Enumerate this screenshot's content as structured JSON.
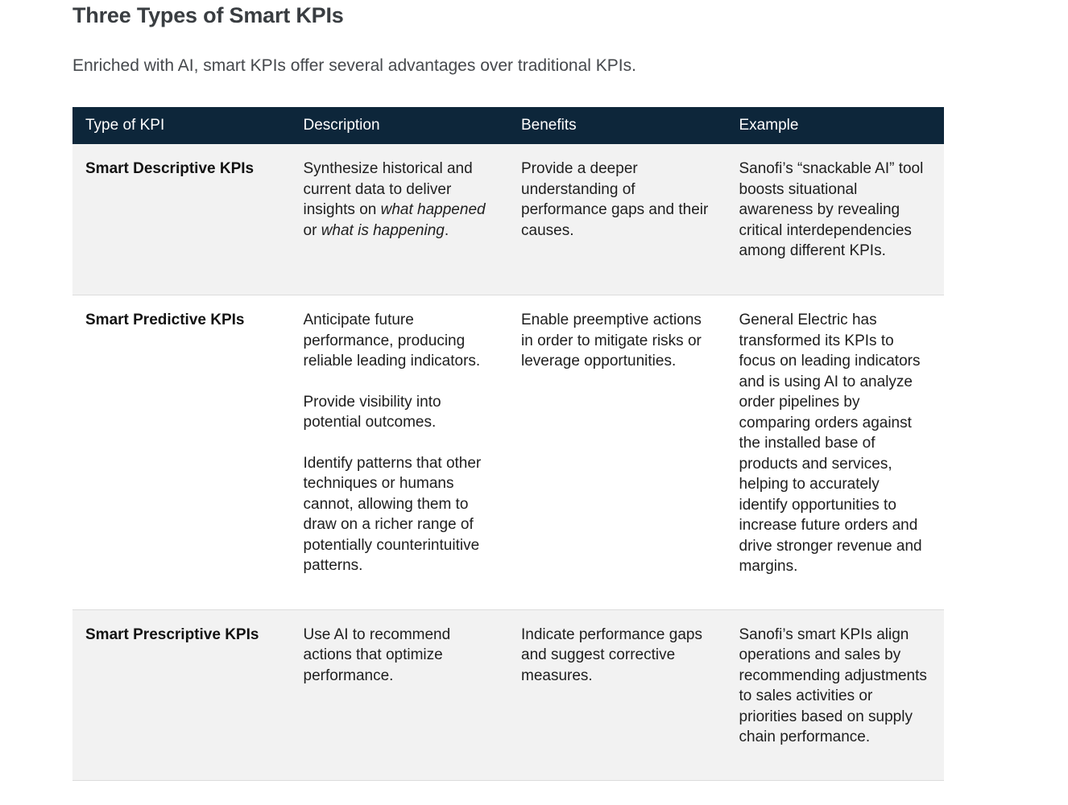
{
  "page": {
    "title": "Three Types of Smart KPIs",
    "subtitle": "Enriched with AI, smart KPIs offer several advantages over traditional KPIs."
  },
  "colors": {
    "header_bg": "#0d263a",
    "header_text": "#ffffff",
    "row_shade_bg": "#f2f2f2",
    "row_plain_bg": "#ffffff",
    "body_text": "#1e1e1e",
    "row_border": "#dcdcdc"
  },
  "table": {
    "columns": [
      "Type of KPI",
      "Description",
      "Benefits",
      "Example"
    ],
    "rows": [
      {
        "type": "Smart Descriptive KPIs",
        "description": [
          [
            {
              "text": "Synthesize historical and current data to deliver insights on ",
              "italic": false
            },
            {
              "text": "what happened",
              "italic": true
            },
            {
              "text": " or ",
              "italic": false
            },
            {
              "text": "what is happening",
              "italic": true
            },
            {
              "text": ".",
              "italic": false
            }
          ]
        ],
        "benefits": [
          "Provide a deeper understanding of performance gaps and their causes."
        ],
        "example": [
          "Sanofi’s “snackable AI” tool boosts situational awareness by revealing critical interdependencies among different KPIs."
        ]
      },
      {
        "type": "Smart Predictive KPIs",
        "description": [
          "Anticipate future performance, producing reliable leading indicators.",
          "Provide visibility into potential outcomes.",
          "Identify patterns that other techniques or humans cannot, allowing them to draw on a richer range of potentially counterintuitive patterns."
        ],
        "benefits": [
          "Enable preemptive actions in order to mitigate risks or leverage opportunities."
        ],
        "example": [
          "General Electric has transformed its KPIs to focus on leading indicators and is using AI to analyze order pipelines by comparing orders against the installed base of products and services, helping to accurately identify opportunities to increase future orders and drive stronger revenue and margins."
        ]
      },
      {
        "type": "Smart Prescriptive KPIs",
        "description": [
          "Use AI to recommend actions that optimize performance."
        ],
        "benefits": [
          "Indicate performance gaps and suggest corrective measures."
        ],
        "example": [
          "Sanofi’s smart KPIs align operations and sales by recommending adjustments to sales activities or priorities based on supply chain performance."
        ]
      }
    ]
  }
}
